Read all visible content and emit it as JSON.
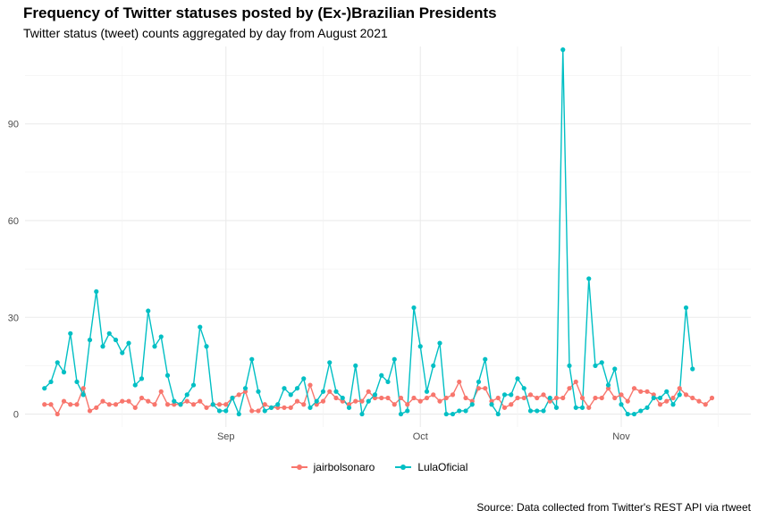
{
  "chart_data": {
    "type": "line",
    "title": "Frequency of Twitter statuses posted by (Ex-)Brazilian Presidents",
    "subtitle": "Twitter status (tweet) counts aggregated by day from August 2021",
    "caption": "Source: Data collected from Twitter's REST API via rtweet",
    "xlabel": "",
    "ylabel": "",
    "x_ticks": [
      "Sep",
      "Oct",
      "Nov"
    ],
    "y_ticks": [
      0,
      30,
      60,
      90
    ],
    "ylim": [
      -4,
      114
    ],
    "xlim": [
      "2021-08-01",
      "2021-11-21"
    ],
    "grid": true,
    "legend_position": "bottom",
    "x_start": "2021-08-04",
    "series": [
      {
        "name": "jairbolsonaro",
        "color": "#F8766D",
        "values": [
          3,
          3,
          0,
          4,
          3,
          3,
          8,
          1,
          2,
          4,
          3,
          3,
          4,
          4,
          2,
          5,
          4,
          3,
          7,
          3,
          3,
          3,
          4,
          3,
          4,
          2,
          3,
          3,
          3,
          5,
          6,
          7,
          1,
          1,
          3,
          2,
          2,
          2,
          2,
          4,
          3,
          9,
          3,
          4,
          7,
          5,
          4,
          3,
          4,
          4,
          7,
          5,
          5,
          5,
          3,
          5,
          3,
          5,
          4,
          5,
          6,
          4,
          5,
          6,
          10,
          5,
          4,
          8,
          8,
          4,
          5,
          2,
          3,
          5,
          5,
          6,
          5,
          6,
          4,
          5,
          5,
          8,
          10,
          5,
          2,
          5,
          5,
          8,
          5,
          6,
          4,
          8,
          7,
          7,
          6,
          3,
          4,
          5,
          8,
          6,
          5,
          4,
          3,
          5
        ]
      },
      {
        "name": "LulaOficial",
        "color": "#00BFC4",
        "values": [
          8,
          10,
          16,
          13,
          25,
          10,
          6,
          23,
          38,
          21,
          25,
          23,
          19,
          22,
          9,
          11,
          32,
          21,
          24,
          12,
          4,
          3,
          6,
          9,
          27,
          21,
          3,
          1,
          1,
          5,
          0,
          8,
          17,
          7,
          1,
          2,
          3,
          8,
          6,
          8,
          11,
          2,
          4,
          7,
          16,
          7,
          5,
          2,
          15,
          0,
          4,
          6,
          12,
          10,
          17,
          0,
          1,
          33,
          21,
          7,
          15,
          22,
          0,
          0,
          1,
          1,
          3,
          10,
          17,
          3,
          0,
          6,
          6,
          11,
          8,
          1,
          1,
          1,
          5,
          2,
          113,
          15,
          2,
          2,
          42,
          15,
          16,
          9,
          14,
          3,
          0,
          0,
          1,
          2,
          5,
          5,
          7,
          3,
          6,
          33,
          14
        ]
      }
    ]
  }
}
